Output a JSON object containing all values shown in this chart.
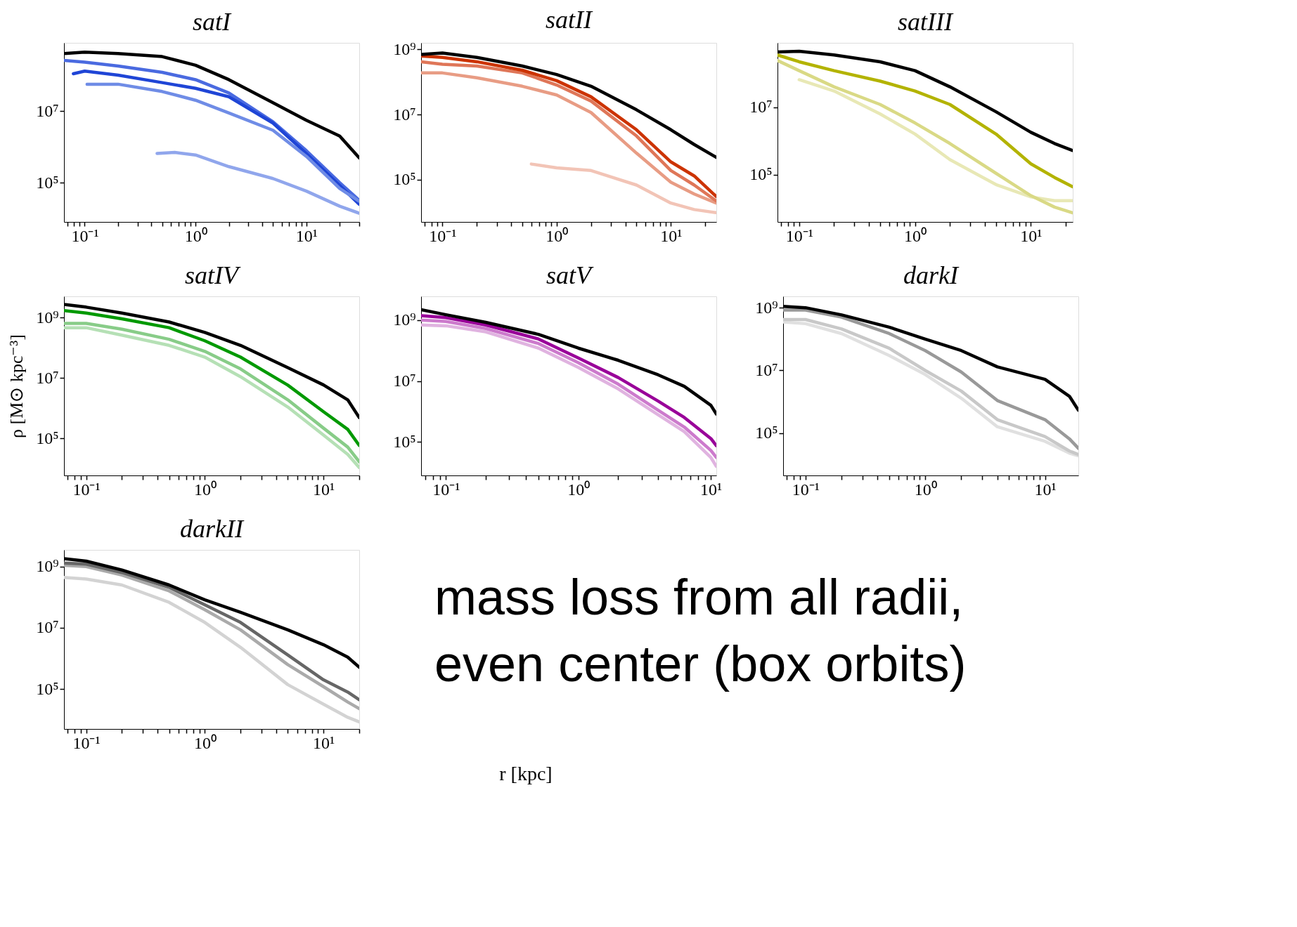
{
  "chart_data": [
    {
      "type": "line",
      "title": "satI",
      "log": "xy",
      "grid": false,
      "legend": false,
      "line_style": "solid",
      "marker": "none",
      "xlim": [
        0.065,
        30
      ],
      "ylim": [
        8000,
        800000000
      ],
      "xticks": [
        {
          "value": 0.07,
          "label": null
        },
        {
          "value": 0.08,
          "label": null
        },
        {
          "value": 0.09,
          "label": null
        },
        {
          "value": 0.1,
          "label": "10⁻¹"
        },
        {
          "value": 0.2,
          "label": null
        },
        {
          "value": 0.3,
          "label": null
        },
        {
          "value": 0.4,
          "label": null
        },
        {
          "value": 0.5,
          "label": null
        },
        {
          "value": 0.6,
          "label": null
        },
        {
          "value": 0.7,
          "label": null
        },
        {
          "value": 0.8,
          "label": null
        },
        {
          "value": 0.9,
          "label": null
        },
        {
          "value": 1,
          "label": "10⁰"
        },
        {
          "value": 2,
          "label": null
        },
        {
          "value": 3,
          "label": null
        },
        {
          "value": 4,
          "label": null
        },
        {
          "value": 5,
          "label": null
        },
        {
          "value": 6,
          "label": null
        },
        {
          "value": 7,
          "label": null
        },
        {
          "value": 8,
          "label": null
        },
        {
          "value": 9,
          "label": null
        },
        {
          "value": 10,
          "label": "10¹"
        },
        {
          "value": 20,
          "label": null
        },
        {
          "value": 30,
          "label": null
        }
      ],
      "yticks": [
        {
          "value": 100000,
          "label": "10⁵"
        },
        {
          "value": 10000000,
          "label": "10⁷"
        }
      ],
      "x": [
        0.065,
        0.1,
        0.2,
        0.5,
        1,
        2,
        5,
        10,
        20,
        30
      ],
      "series": [
        {
          "color": "#4a6ae0",
          "values": [
            260000000.0,
            230000000.0,
            180000000.0,
            120000000.0,
            75000000.0,
            32000000.0,
            5000000.0,
            780000.0,
            100000.0,
            32000.0
          ]
        },
        {
          "color": "#1f45d6",
          "x": [
            0.079,
            0.1,
            0.2,
            0.5,
            1,
            2,
            5,
            10,
            20,
            30
          ],
          "values": [
            110000000.0,
            130000000.0,
            100000000.0,
            62000000.0,
            43000000.0,
            25000000.0,
            4600000.0,
            650000.0,
            83000.0,
            25000.0
          ]
        },
        {
          "color": "#6f8ce6",
          "x": [
            0.105,
            0.2,
            0.5,
            1,
            2,
            5,
            10,
            20,
            30
          ],
          "values": [
            56000000.0,
            56000000.0,
            35000000.0,
            20000000.0,
            8800000.0,
            2900000.0,
            540000.0,
            69000.0,
            30000.0
          ]
        },
        {
          "color": "#90a6ec",
          "x": [
            0.45,
            0.65,
            1,
            2,
            5,
            10,
            20,
            30
          ],
          "values": [
            650000.0,
            700000.0,
            590000.0,
            280000.0,
            130000.0,
            58000.0,
            22000.0,
            14000.0
          ]
        },
        {
          "color": "#000000",
          "values": [
            400000000.0,
            440000000.0,
            400000000.0,
            330000000.0,
            190000000.0,
            75000000.0,
            17000000.0,
            5500000.0,
            2000000.0,
            490000.0
          ]
        }
      ]
    },
    {
      "type": "line",
      "title": "satII",
      "log": "xy",
      "grid": false,
      "legend": false,
      "line_style": "solid",
      "marker": "none",
      "xlim": [
        0.065,
        25
      ],
      "ylim": [
        5000,
        1600000000
      ],
      "xticks": [
        {
          "value": 0.07,
          "label": null
        },
        {
          "value": 0.08,
          "label": null
        },
        {
          "value": 0.09,
          "label": null
        },
        {
          "value": 0.1,
          "label": "10⁻¹"
        },
        {
          "value": 0.2,
          "label": null
        },
        {
          "value": 0.3,
          "label": null
        },
        {
          "value": 0.4,
          "label": null
        },
        {
          "value": 0.5,
          "label": null
        },
        {
          "value": 0.6,
          "label": null
        },
        {
          "value": 0.7,
          "label": null
        },
        {
          "value": 0.8,
          "label": null
        },
        {
          "value": 0.9,
          "label": null
        },
        {
          "value": 1,
          "label": "10⁰"
        },
        {
          "value": 2,
          "label": null
        },
        {
          "value": 3,
          "label": null
        },
        {
          "value": 4,
          "label": null
        },
        {
          "value": 5,
          "label": null
        },
        {
          "value": 6,
          "label": null
        },
        {
          "value": 7,
          "label": null
        },
        {
          "value": 8,
          "label": null
        },
        {
          "value": 9,
          "label": null
        },
        {
          "value": 10,
          "label": "10¹"
        },
        {
          "value": 20,
          "label": null
        }
      ],
      "yticks": [
        {
          "value": 100000,
          "label": "10⁵"
        },
        {
          "value": 10000000,
          "label": "10⁷"
        },
        {
          "value": 1000000000,
          "label": "10⁹"
        }
      ],
      "x": [
        0.065,
        0.1,
        0.2,
        0.5,
        1,
        2,
        5,
        10,
        16,
        25
      ],
      "series": [
        {
          "color": "#f2c4b6",
          "x": [
            0.6,
            1,
            2,
            5,
            10,
            16,
            25
          ],
          "values": [
            300000.0,
            230000.0,
            190000.0,
            68000.0,
            19000.0,
            12000.0,
            9600.0
          ]
        },
        {
          "color": "#e89c84",
          "values": [
            190000000.0,
            190000000.0,
            135000000.0,
            74000000.0,
            40000000.0,
            11500000.0,
            650000.0,
            83000.0,
            36000.0,
            19000.0
          ]
        },
        {
          "color": "#df7658",
          "values": [
            420000000.0,
            350000000.0,
            310000000.0,
            190000000.0,
            81000000.0,
            26000000.0,
            2200000.0,
            190000.0,
            68000.0,
            22000.0
          ]
        },
        {
          "color": "#cc3300",
          "values": [
            630000000.0,
            570000000.0,
            420000000.0,
            230000000.0,
            110000000.0,
            35000000.0,
            3400000.0,
            350000.0,
            130000.0,
            30000.0
          ]
        },
        {
          "color": "#000000",
          "values": [
            700000000.0,
            780000000.0,
            570000000.0,
            310000000.0,
            170000000.0,
            74000000.0,
            14000000.0,
            3400000.0,
            1200000.0,
            480000.0
          ]
        }
      ]
    },
    {
      "type": "line",
      "title": "satIII",
      "log": "xy",
      "grid": false,
      "legend": false,
      "line_style": "solid",
      "marker": "none",
      "xlim": [
        0.065,
        23
      ],
      "ylim": [
        4000,
        800000000
      ],
      "xticks": [
        {
          "value": 0.07,
          "label": null
        },
        {
          "value": 0.08,
          "label": null
        },
        {
          "value": 0.09,
          "label": null
        },
        {
          "value": 0.1,
          "label": "10⁻¹"
        },
        {
          "value": 0.2,
          "label": null
        },
        {
          "value": 0.3,
          "label": null
        },
        {
          "value": 0.4,
          "label": null
        },
        {
          "value": 0.5,
          "label": null
        },
        {
          "value": 0.6,
          "label": null
        },
        {
          "value": 0.7,
          "label": null
        },
        {
          "value": 0.8,
          "label": null
        },
        {
          "value": 0.9,
          "label": null
        },
        {
          "value": 1,
          "label": "10⁰"
        },
        {
          "value": 2,
          "label": null
        },
        {
          "value": 3,
          "label": null
        },
        {
          "value": 4,
          "label": null
        },
        {
          "value": 5,
          "label": null
        },
        {
          "value": 6,
          "label": null
        },
        {
          "value": 7,
          "label": null
        },
        {
          "value": 8,
          "label": null
        },
        {
          "value": 9,
          "label": null
        },
        {
          "value": 10,
          "label": "10¹"
        },
        {
          "value": 20,
          "label": null
        }
      ],
      "yticks": [
        {
          "value": 100000,
          "label": "10⁵"
        },
        {
          "value": 10000000,
          "label": "10⁷"
        }
      ],
      "x": [
        0.065,
        0.1,
        0.2,
        0.5,
        1,
        2,
        5,
        10,
        16,
        23
      ],
      "series": [
        {
          "color": "#e8e8b5",
          "x": [
            0.1,
            0.2,
            0.5,
            1,
            2,
            5,
            10,
            16,
            23
          ],
          "values": [
            65000000.0,
            30000000.0,
            6300000.0,
            1600000.0,
            280000.0,
            51000.0,
            22000.0,
            17000.0,
            17000.0
          ]
        },
        {
          "color": "#d9d985",
          "values": [
            240000000.0,
            120000000.0,
            40000000.0,
            12000000.0,
            3400000.0,
            840000.0,
            110000.0,
            24000.0,
            11000.0,
            7400.0
          ]
        },
        {
          "color": "#b3b300",
          "values": [
            350000000.0,
            220000000.0,
            120000000.0,
            59000000.0,
            30000000.0,
            12000000.0,
            1600000.0,
            210000.0,
            83000.0,
            44000.0
          ]
        },
        {
          "color": "#000000",
          "values": [
            430000000.0,
            450000000.0,
            350000000.0,
            220000000.0,
            120000000.0,
            40000000.0,
            7300000.0,
            1800000.0,
            840000.0,
            520000.0
          ]
        }
      ]
    },
    {
      "type": "line",
      "title": "satIV",
      "ylabel": "ρ [M⊙ kpc⁻³]",
      "log": "xy",
      "grid": false,
      "legend": false,
      "line_style": "solid",
      "marker": "none",
      "xlim": [
        0.065,
        20
      ],
      "ylim": [
        6000,
        5000000000
      ],
      "xticks": [
        {
          "value": 0.07,
          "label": null
        },
        {
          "value": 0.08,
          "label": null
        },
        {
          "value": 0.09,
          "label": null
        },
        {
          "value": 0.1,
          "label": "10⁻¹"
        },
        {
          "value": 0.2,
          "label": null
        },
        {
          "value": 0.3,
          "label": null
        },
        {
          "value": 0.4,
          "label": null
        },
        {
          "value": 0.5,
          "label": null
        },
        {
          "value": 0.6,
          "label": null
        },
        {
          "value": 0.7,
          "label": null
        },
        {
          "value": 0.8,
          "label": null
        },
        {
          "value": 0.9,
          "label": null
        },
        {
          "value": 1,
          "label": "10⁰"
        },
        {
          "value": 2,
          "label": null
        },
        {
          "value": 3,
          "label": null
        },
        {
          "value": 4,
          "label": null
        },
        {
          "value": 5,
          "label": null
        },
        {
          "value": 6,
          "label": null
        },
        {
          "value": 7,
          "label": null
        },
        {
          "value": 8,
          "label": null
        },
        {
          "value": 9,
          "label": null
        },
        {
          "value": 10,
          "label": "10¹"
        },
        {
          "value": 20,
          "label": null
        }
      ],
      "yticks": [
        {
          "value": 100000,
          "label": "10⁵"
        },
        {
          "value": 10000000,
          "label": "10⁷"
        },
        {
          "value": 1000000000,
          "label": "10⁹"
        }
      ],
      "x": [
        0.065,
        0.1,
        0.2,
        0.5,
        1,
        2,
        5,
        10,
        16,
        20
      ],
      "series": [
        {
          "color": "#b5e0b5",
          "values": [
            460000000.0,
            460000000.0,
            260000000.0,
            120000000.0,
            49000000.0,
            11000000.0,
            1100000.0,
            130000.0,
            30000.0,
            11000.0
          ]
        },
        {
          "color": "#88cc88",
          "values": [
            640000000.0,
            640000000.0,
            410000000.0,
            190000000.0,
            76000000.0,
            20000000.0,
            1900000.0,
            220000.0,
            52000.0,
            17000.0
          ]
        },
        {
          "color": "#009900",
          "values": [
            1700000000.0,
            1400000000.0,
            900000000.0,
            460000000.0,
            170000000.0,
            49000000.0,
            5800000.0,
            770000.0,
            200000.0,
            59000.0
          ]
        },
        {
          "color": "#000000",
          "values": [
            2700000000.0,
            2200000000.0,
            1400000000.0,
            710000000.0,
            320000000.0,
            120000000.0,
            22000000.0,
            5900000.0,
            1900000.0,
            490000.0
          ]
        }
      ]
    },
    {
      "type": "line",
      "title": "satV",
      "log": "xy",
      "grid": false,
      "legend": false,
      "line_style": "solid",
      "marker": "none",
      "xlim": [
        0.065,
        11
      ],
      "ylim": [
        8000,
        6000000000
      ],
      "xticks": [
        {
          "value": 0.07,
          "label": null
        },
        {
          "value": 0.08,
          "label": null
        },
        {
          "value": 0.09,
          "label": null
        },
        {
          "value": 0.1,
          "label": "10⁻¹"
        },
        {
          "value": 0.2,
          "label": null
        },
        {
          "value": 0.3,
          "label": null
        },
        {
          "value": 0.4,
          "label": null
        },
        {
          "value": 0.5,
          "label": null
        },
        {
          "value": 0.6,
          "label": null
        },
        {
          "value": 0.7,
          "label": null
        },
        {
          "value": 0.8,
          "label": null
        },
        {
          "value": 0.9,
          "label": null
        },
        {
          "value": 1,
          "label": "10⁰"
        },
        {
          "value": 2,
          "label": null
        },
        {
          "value": 3,
          "label": null
        },
        {
          "value": 4,
          "label": null
        },
        {
          "value": 5,
          "label": null
        },
        {
          "value": 6,
          "label": null
        },
        {
          "value": 7,
          "label": null
        },
        {
          "value": 8,
          "label": null
        },
        {
          "value": 9,
          "label": null
        },
        {
          "value": 10,
          "label": "10¹"
        }
      ],
      "yticks": [
        {
          "value": 100000,
          "label": "10⁵"
        },
        {
          "value": 10000000,
          "label": "10⁷"
        },
        {
          "value": 1000000000,
          "label": "10⁹"
        }
      ],
      "x": [
        0.065,
        0.1,
        0.2,
        0.5,
        1,
        2,
        4,
        6.3,
        10,
        11
      ],
      "series": [
        {
          "color": "#e0b3e0",
          "values": [
            690000000.0,
            650000000.0,
            410000000.0,
            120000000.0,
            28000000.0,
            5500000.0,
            780000.0,
            220000.0,
            31000.0,
            16000.0
          ]
        },
        {
          "color": "#cc7acc",
          "values": [
            1000000000.0,
            900000000.0,
            530000000.0,
            170000000.0,
            40000000.0,
            7900000.0,
            1100000.0,
            310000.0,
            53000.0,
            31000.0
          ]
        },
        {
          "color": "#990099",
          "values": [
            1400000000.0,
            1200000000.0,
            690000000.0,
            240000000.0,
            57000000.0,
            13000000.0,
            2200000.0,
            640000.0,
            130000.0,
            76000.0
          ]
        },
        {
          "color": "#000000",
          "values": [
            2200000000.0,
            1500000000.0,
            840000000.0,
            340000000.0,
            120000000.0,
            48000000.0,
            16000000.0,
            6700000.0,
            1600000.0,
            830000.0
          ]
        }
      ]
    },
    {
      "type": "line",
      "title": "darkI",
      "log": "xy",
      "grid": false,
      "legend": false,
      "line_style": "solid",
      "marker": "none",
      "xlim": [
        0.065,
        19
      ],
      "ylim": [
        4500,
        2300000000
      ],
      "xticks": [
        {
          "value": 0.07,
          "label": null
        },
        {
          "value": 0.08,
          "label": null
        },
        {
          "value": 0.09,
          "label": null
        },
        {
          "value": 0.1,
          "label": "10⁻¹"
        },
        {
          "value": 0.2,
          "label": null
        },
        {
          "value": 0.3,
          "label": null
        },
        {
          "value": 0.4,
          "label": null
        },
        {
          "value": 0.5,
          "label": null
        },
        {
          "value": 0.6,
          "label": null
        },
        {
          "value": 0.7,
          "label": null
        },
        {
          "value": 0.8,
          "label": null
        },
        {
          "value": 0.9,
          "label": null
        },
        {
          "value": 1,
          "label": "10⁰"
        },
        {
          "value": 2,
          "label": null
        },
        {
          "value": 3,
          "label": null
        },
        {
          "value": 4,
          "label": null
        },
        {
          "value": 5,
          "label": null
        },
        {
          "value": 6,
          "label": null
        },
        {
          "value": 7,
          "label": null
        },
        {
          "value": 8,
          "label": null
        },
        {
          "value": 9,
          "label": null
        },
        {
          "value": 10,
          "label": "10¹"
        }
      ],
      "yticks": [
        {
          "value": 100000,
          "label": "10⁵"
        },
        {
          "value": 10000000,
          "label": "10⁷"
        },
        {
          "value": 1000000000,
          "label": "10⁹"
        }
      ],
      "x": [
        0.065,
        0.1,
        0.2,
        0.5,
        1,
        2,
        4,
        10,
        16,
        19
      ],
      "series": [
        {
          "color": "#e0e0e0",
          "values": [
            350000000.0,
            310000000.0,
            150000000.0,
            30000000.0,
            7400000.0,
            1300000.0,
            160000.0,
            55000.0,
            23000.0,
            19000.0
          ]
        },
        {
          "color": "#c8c8c8",
          "values": [
            420000000.0,
            420000000.0,
            210000000.0,
            51000000.0,
            10000000.0,
            2200000.0,
            270000.0,
            78000.0,
            27000.0,
            21000.0
          ]
        },
        {
          "color": "#999999",
          "values": [
            840000000.0,
            840000000.0,
            500000000.0,
            150000000.0,
            43000000.0,
            8900000.0,
            1100000.0,
            270000.0,
            66000.0,
            33000.0
          ]
        },
        {
          "color": "#000000",
          "values": [
            1100000000.0,
            1000000000.0,
            590000000.0,
            240000000.0,
            100000000.0,
            43000000.0,
            13000000.0,
            5200000.0,
            1500000.0,
            540000.0
          ]
        }
      ]
    },
    {
      "type": "line",
      "title": "darkII",
      "log": "xy",
      "grid": false,
      "legend": false,
      "line_style": "solid",
      "marker": "none",
      "xlim": [
        0.065,
        20
      ],
      "ylim": [
        5000,
        3500000000
      ],
      "xticks": [
        {
          "value": 0.07,
          "label": null
        },
        {
          "value": 0.08,
          "label": null
        },
        {
          "value": 0.09,
          "label": null
        },
        {
          "value": 0.1,
          "label": "10⁻¹"
        },
        {
          "value": 0.2,
          "label": null
        },
        {
          "value": 0.3,
          "label": null
        },
        {
          "value": 0.4,
          "label": null
        },
        {
          "value": 0.5,
          "label": null
        },
        {
          "value": 0.6,
          "label": null
        },
        {
          "value": 0.7,
          "label": null
        },
        {
          "value": 0.8,
          "label": null
        },
        {
          "value": 0.9,
          "label": null
        },
        {
          "value": 1,
          "label": "10⁰"
        },
        {
          "value": 2,
          "label": null
        },
        {
          "value": 3,
          "label": null
        },
        {
          "value": 4,
          "label": null
        },
        {
          "value": 5,
          "label": null
        },
        {
          "value": 6,
          "label": null
        },
        {
          "value": 7,
          "label": null
        },
        {
          "value": 8,
          "label": null
        },
        {
          "value": 9,
          "label": null
        },
        {
          "value": 10,
          "label": "10¹"
        },
        {
          "value": 20,
          "label": null
        }
      ],
      "yticks": [
        {
          "value": 100000,
          "label": "10⁵"
        },
        {
          "value": 10000000,
          "label": "10⁷"
        },
        {
          "value": 1000000000,
          "label": "10⁹"
        }
      ],
      "x": [
        0.065,
        0.1,
        0.2,
        0.5,
        1,
        2,
        5,
        10,
        16,
        20
      ],
      "series": [
        {
          "color": "#d3d3d3",
          "values": [
            440000000.0,
            390000000.0,
            250000000.0,
            68000000.0,
            15000000.0,
            2300000.0,
            140000.0,
            32000.0,
            12000.0,
            8500.0
          ]
        },
        {
          "color": "#aaaaaa",
          "values": [
            1100000000.0,
            1000000000.0,
            530000000.0,
            160000000.0,
            39000000.0,
            8600000.0,
            630000.0,
            120000.0,
            38000.0,
            23000.0
          ]
        },
        {
          "color": "#666666",
          "values": [
            1300000000.0,
            1200000000.0,
            640000000.0,
            210000000.0,
            56000000.0,
            15000000.0,
            1300000.0,
            200000.0,
            80000.0,
            45000.0
          ]
        },
        {
          "color": "#000000",
          "values": [
            1800000000.0,
            1500000000.0,
            770000000.0,
            250000000.0,
            82000000.0,
            32000000.0,
            8600000.0,
            2800000.0,
            1100000.0,
            520000.0
          ]
        }
      ]
    },
    {
      "type": "other",
      "xlabel": "r [kpc]",
      "annotations": [
        "mass loss from all radii,",
        "even center (box orbits)"
      ]
    }
  ]
}
